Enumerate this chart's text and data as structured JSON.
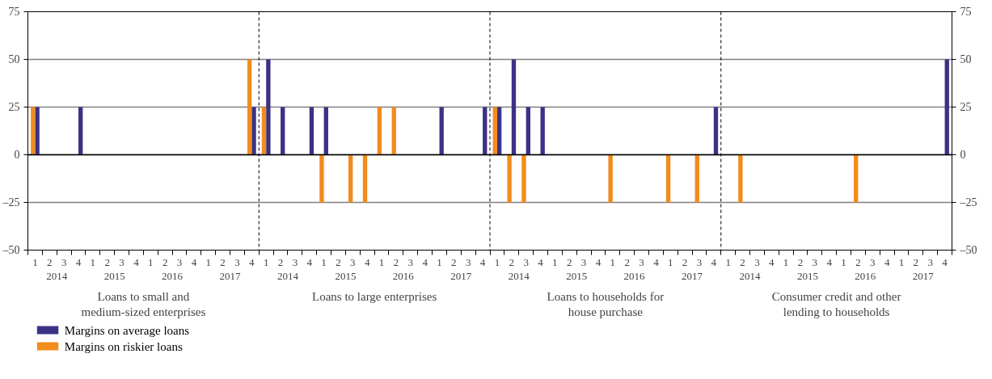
{
  "chart_data": {
    "type": "bar",
    "categories": [
      "1",
      "2",
      "3",
      "4",
      "1",
      "2",
      "3",
      "4",
      "1",
      "2",
      "3",
      "4",
      "1",
      "2",
      "3",
      "4",
      "1",
      "2",
      "3",
      "4",
      "1",
      "2",
      "3",
      "4",
      "1",
      "2",
      "3",
      "4",
      "1",
      "2",
      "3",
      "4",
      "1",
      "2",
      "3",
      "4",
      "1",
      "2",
      "3",
      "4",
      "1",
      "2",
      "3",
      "4",
      "1",
      "2",
      "3",
      "4",
      "1",
      "2",
      "3",
      "4",
      "1",
      "2",
      "3",
      "4",
      "1",
      "2",
      "3",
      "4",
      "1",
      "2",
      "3",
      "4"
    ],
    "series": [
      {
        "name": "Margins on average loans",
        "color": "#3b3285",
        "values": [
          25,
          0,
          0,
          25,
          0,
          0,
          0,
          0,
          0,
          0,
          0,
          0,
          0,
          0,
          0,
          25,
          50,
          25,
          0,
          25,
          25,
          0,
          0,
          0,
          0,
          0,
          0,
          0,
          25,
          0,
          0,
          25,
          25,
          50,
          25,
          25,
          0,
          0,
          0,
          0,
          0,
          0,
          0,
          0,
          0,
          0,
          0,
          25,
          0,
          0,
          0,
          0,
          0,
          0,
          0,
          0,
          0,
          0,
          0,
          0,
          0,
          0,
          0,
          50
        ]
      },
      {
        "name": "Margins on riskier loans",
        "color": "#f28c1c",
        "values": [
          25,
          0,
          0,
          0,
          0,
          0,
          0,
          0,
          0,
          0,
          0,
          0,
          0,
          0,
          0,
          50,
          25,
          0,
          0,
          0,
          -25,
          0,
          -25,
          -25,
          25,
          25,
          0,
          0,
          0,
          0,
          0,
          0,
          25,
          -25,
          -25,
          0,
          0,
          0,
          0,
          0,
          -25,
          0,
          0,
          0,
          -25,
          0,
          -25,
          0,
          0,
          -25,
          0,
          0,
          0,
          0,
          0,
          0,
          0,
          -25,
          0,
          0,
          0,
          0,
          0,
          0
        ]
      }
    ],
    "ylim": [
      -50,
      75
    ],
    "yticks": [
      {
        "value": -50,
        "label": "–50"
      },
      {
        "value": -25,
        "label": "–25"
      },
      0,
      25,
      50,
      75
    ],
    "y2lim": [
      -50,
      75
    ],
    "y2ticks": [
      {
        "value": -50,
        "label": "–50"
      },
      {
        "value": -25,
        "label": "–25"
      },
      0,
      25,
      50,
      75
    ],
    "grid": "y",
    "legend": "bottom left",
    "annotations": [
      "2014",
      "2015",
      "2016",
      "2017",
      "2014",
      "2015",
      "2016",
      "2017",
      "2014",
      "2015",
      "2016",
      "2017",
      "2014",
      "2015",
      "2016",
      "2017",
      "Loans to small and medium-sized enterprises",
      "Loans to large enterprises",
      "Loans to households for house purchase",
      "Consumer credit and other lending to households"
    ]
  }
}
